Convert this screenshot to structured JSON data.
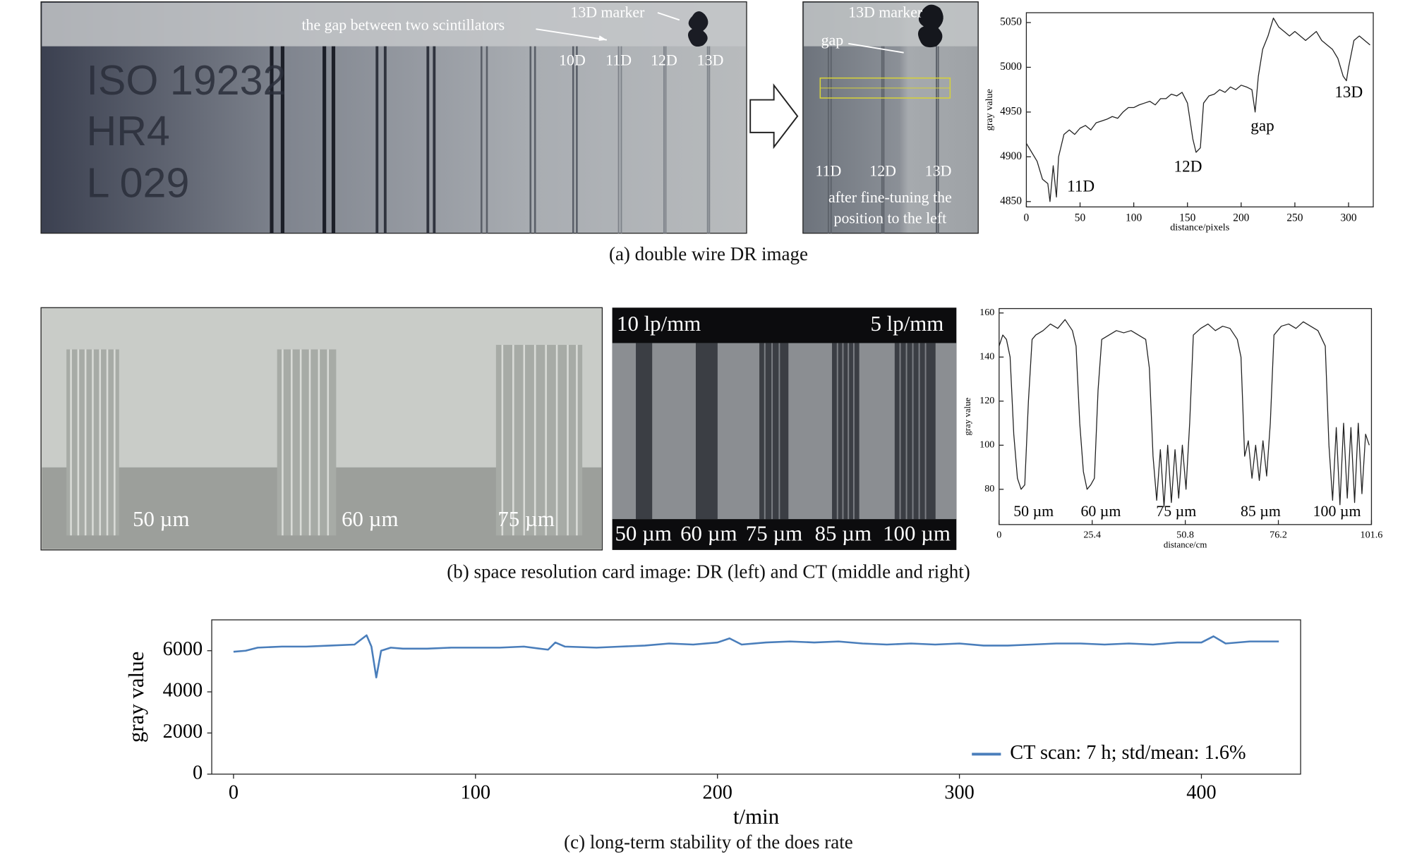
{
  "images": {
    "double_wire_dr": {
      "plate_text": [
        "ISO 19232",
        "HR4",
        "L 029"
      ],
      "gap_label": "the gap between two scintillators",
      "marker_label": "13D marker",
      "wire_labels": [
        "10D",
        "11D",
        "12D",
        "13D"
      ]
    },
    "fine_tuned": {
      "marker_label": "13D marker",
      "gap_label": "gap",
      "wire_labels": [
        "11D",
        "12D",
        "13D"
      ],
      "note": [
        "after fine-tuning the",
        "position to the left"
      ]
    },
    "resolution_dr": {
      "labels": [
        "50 µm",
        "60 µm",
        "75 µm"
      ]
    },
    "resolution_ct": {
      "top_labels": [
        "10 lp/mm",
        "5 lp/mm"
      ],
      "bottom_labels": [
        "50 µm",
        "60 µm",
        "75 µm",
        "85 µm",
        "100 µm"
      ]
    }
  },
  "captions": [
    "(a) double wire DR image",
    "(b) space resolution card image: DR (left) and CT (middle and right)",
    "(c) long-term stability of the does rate"
  ],
  "chart_data": [
    {
      "type": "line",
      "x_label": "distance/pixels",
      "y_label": "gray value",
      "xlim": [
        0,
        323
      ],
      "ylim": [
        4844,
        5061
      ],
      "xticks": [
        0,
        50,
        100,
        150,
        200,
        250,
        300
      ],
      "yticks": [
        4850,
        4900,
        4950,
        5000,
        5050
      ],
      "annotations": [
        "11D",
        "12D",
        "gap",
        "13D"
      ],
      "x": [
        0,
        5,
        10,
        15,
        20,
        22,
        25,
        28,
        30,
        35,
        40,
        45,
        50,
        55,
        60,
        65,
        70,
        75,
        80,
        85,
        90,
        95,
        100,
        105,
        110,
        115,
        120,
        125,
        130,
        135,
        140,
        145,
        150,
        155,
        158,
        162,
        165,
        170,
        175,
        180,
        185,
        190,
        195,
        200,
        205,
        210,
        213,
        216,
        220,
        225,
        230,
        235,
        240,
        245,
        250,
        255,
        260,
        265,
        270,
        275,
        280,
        285,
        290,
        295,
        298,
        300,
        305,
        310,
        315,
        320
      ],
      "series": [
        {
          "color": "#222222",
          "values": [
            4915,
            4905,
            4895,
            4875,
            4870,
            4850,
            4890,
            4855,
            4900,
            4925,
            4930,
            4925,
            4932,
            4935,
            4930,
            4938,
            4940,
            4942,
            4945,
            4943,
            4950,
            4955,
            4955,
            4958,
            4960,
            4962,
            4958,
            4965,
            4965,
            4970,
            4968,
            4972,
            4960,
            4920,
            4905,
            4910,
            4960,
            4968,
            4970,
            4975,
            4972,
            4978,
            4975,
            4980,
            4978,
            4975,
            4950,
            4990,
            5020,
            5035,
            5055,
            5045,
            5040,
            5035,
            5040,
            5035,
            5030,
            5035,
            5040,
            5030,
            5025,
            5020,
            5010,
            4990,
            4985,
            5000,
            5030,
            5035,
            5030,
            5025
          ]
        }
      ]
    },
    {
      "type": "line",
      "x_label": "distance/cm",
      "y_label": "gray value",
      "xlim": [
        0,
        101.6
      ],
      "ylim": [
        64,
        162
      ],
      "xticks": [
        0,
        25.4,
        50.8,
        76.2,
        101.6
      ],
      "yticks": [
        80,
        100,
        120,
        140,
        160
      ],
      "annotations": [
        "50 µm",
        "60 µm",
        "75 µm",
        "85 µm",
        "100 µm"
      ],
      "x": [
        0,
        1,
        2,
        3,
        4,
        5,
        6,
        7,
        8,
        9,
        10,
        12,
        14,
        16,
        18,
        20,
        21,
        22,
        23,
        24,
        25,
        26,
        27,
        28,
        30,
        32,
        34,
        36,
        38,
        40,
        41,
        42,
        43,
        44,
        45,
        46,
        47,
        48,
        49,
        50,
        51,
        52,
        53,
        55,
        57,
        59,
        61,
        63,
        65,
        66,
        67,
        68,
        69,
        70,
        71,
        72,
        73,
        74,
        75,
        77,
        79,
        81,
        83,
        85,
        87,
        89,
        90,
        91,
        92,
        93,
        94,
        95,
        96,
        97,
        98,
        99,
        100,
        101
      ],
      "series": [
        {
          "color": "#222222",
          "values": [
            145,
            150,
            148,
            140,
            105,
            85,
            80,
            82,
            120,
            148,
            150,
            152,
            155,
            153,
            157,
            152,
            145,
            110,
            88,
            80,
            82,
            85,
            125,
            148,
            150,
            152,
            151,
            152,
            150,
            148,
            135,
            95,
            75,
            98,
            72,
            100,
            74,
            98,
            76,
            100,
            80,
            110,
            150,
            153,
            155,
            152,
            154,
            153,
            148,
            140,
            95,
            102,
            85,
            100,
            84,
            102,
            86,
            110,
            150,
            154,
            155,
            153,
            156,
            154,
            152,
            145,
            100,
            75,
            108,
            73,
            110,
            76,
            108,
            74,
            110,
            78,
            105,
            100
          ]
        }
      ]
    },
    {
      "type": "line",
      "x_label": "t/min",
      "y_label": "gray value",
      "xlim": [
        -9,
        441
      ],
      "ylim": [
        0,
        7500
      ],
      "xticks": [
        0,
        100,
        200,
        300,
        400
      ],
      "yticks": [
        0,
        2000,
        4000,
        6000
      ],
      "legend": "lower right",
      "x": [
        0,
        5,
        10,
        20,
        30,
        40,
        50,
        55,
        57,
        59,
        61,
        65,
        70,
        80,
        90,
        100,
        110,
        120,
        130,
        133,
        137,
        150,
        160,
        170,
        180,
        190,
        200,
        205,
        210,
        220,
        230,
        240,
        250,
        260,
        270,
        280,
        290,
        300,
        310,
        320,
        330,
        340,
        350,
        360,
        370,
        380,
        390,
        400,
        405,
        410,
        420,
        432
      ],
      "series": [
        {
          "name": "CT scan: 7 h; std/mean: 1.6%",
          "color": "#4a7ebb",
          "values": [
            5950,
            6000,
            6150,
            6200,
            6200,
            6250,
            6300,
            6750,
            6200,
            4700,
            6000,
            6150,
            6100,
            6100,
            6150,
            6150,
            6150,
            6200,
            6050,
            6400,
            6200,
            6150,
            6200,
            6250,
            6350,
            6300,
            6400,
            6600,
            6300,
            6400,
            6450,
            6400,
            6450,
            6350,
            6300,
            6350,
            6300,
            6350,
            6250,
            6250,
            6300,
            6350,
            6350,
            6300,
            6350,
            6300,
            6400,
            6400,
            6700,
            6350,
            6450,
            6450
          ]
        }
      ]
    }
  ]
}
